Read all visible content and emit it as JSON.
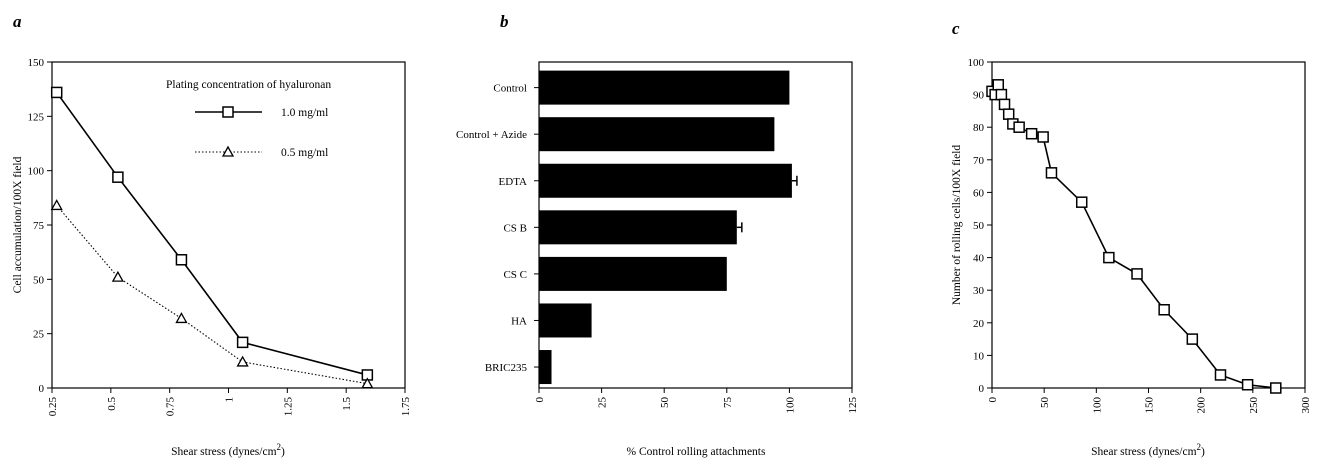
{
  "chart_data": [
    {
      "panel": "a",
      "type": "line",
      "xlabel": "Shear stress (dynes/cm",
      "xlabel_sup": "2",
      "xlabel_tail": ")",
      "ylabel": "Cell accumulation/100X field",
      "xlim": [
        0.25,
        1.75
      ],
      "ylim": [
        0,
        150
      ],
      "xticks": [
        "0.25",
        "0.5",
        "0.75",
        "1",
        "1.25",
        "1.5",
        "1.75"
      ],
      "yticks": [
        "0",
        "25",
        "50",
        "75",
        "100",
        "125",
        "150"
      ],
      "legend_title": "Plating concentration of hyaluronan",
      "series": [
        {
          "name": "1.0 mg/ml",
          "marker": "square",
          "line": "solid",
          "x": [
            0.27,
            0.53,
            0.8,
            1.06,
            1.59
          ],
          "y": [
            136,
            97,
            59,
            21,
            6
          ]
        },
        {
          "name": "0.5 mg/ml",
          "marker": "triangle",
          "line": "dotted",
          "x": [
            0.27,
            0.53,
            0.8,
            1.06,
            1.59
          ],
          "y": [
            84,
            51,
            32,
            12,
            2
          ]
        }
      ]
    },
    {
      "panel": "b",
      "type": "bar",
      "orientation": "horizontal",
      "xlabel": "% Control rolling attachments",
      "xlim": [
        0,
        125
      ],
      "xticks": [
        "0",
        "25",
        "50",
        "75",
        "100",
        "125"
      ],
      "categories": [
        "Control",
        "Control + Azide",
        "EDTA",
        "CS B",
        "CS C",
        "HA",
        "BRIC235"
      ],
      "values": [
        100,
        94,
        101,
        79,
        75,
        21,
        5
      ],
      "errors": [
        0,
        0,
        2,
        2,
        0,
        0,
        0
      ]
    },
    {
      "panel": "c",
      "type": "line",
      "xlabel": "Shear stress (dynes/cm",
      "xlabel_sup": "2",
      "xlabel_tail": ")",
      "ylabel": "Number of rolling cells/100X field",
      "xlim": [
        0,
        300
      ],
      "ylim": [
        0,
        100
      ],
      "xticks": [
        "0",
        "50",
        "100",
        "150",
        "200",
        "250",
        "300"
      ],
      "yticks": [
        "0",
        "10",
        "20",
        "30",
        "40",
        "50",
        "60",
        "70",
        "80",
        "90",
        "100"
      ],
      "series": [
        {
          "marker": "square",
          "line": "solid",
          "x": [
            0,
            3,
            6,
            9,
            12,
            16,
            20,
            26,
            38,
            49,
            57,
            86,
            112,
            139,
            165,
            192,
            219,
            245,
            272
          ],
          "y": [
            91,
            90,
            93,
            90,
            87,
            84,
            81,
            80,
            78,
            77,
            66,
            57,
            40,
            35,
            24,
            15,
            4,
            1,
            0
          ]
        }
      ]
    }
  ]
}
